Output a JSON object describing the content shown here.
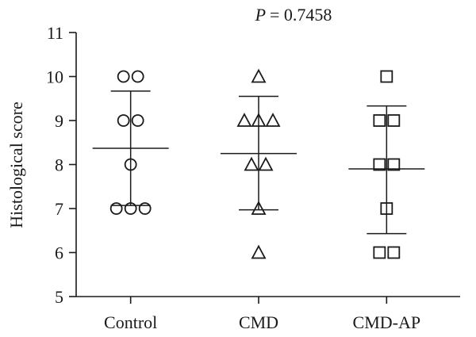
{
  "chart_data": {
    "type": "scatter",
    "title": "= 0.7458",
    "title_prefix": "P",
    "xlabel": "",
    "ylabel": "Histological score",
    "ylim": [
      5,
      11
    ],
    "yticks": [
      5,
      6,
      7,
      8,
      9,
      10,
      11
    ],
    "grid": false,
    "categories": [
      "Control",
      "CMD",
      "CMD-AP"
    ],
    "groups": [
      {
        "category": "Control",
        "marker": "circle",
        "values": [
          10,
          10,
          9,
          9,
          8,
          7,
          7,
          7
        ],
        "mean": 8.37,
        "sd_upper": 9.67,
        "sd_lower": 7.07
      },
      {
        "category": "CMD",
        "marker": "triangle",
        "values": [
          10,
          9,
          9,
          9,
          8,
          8,
          7,
          6
        ],
        "mean": 8.25,
        "sd_upper": 9.55,
        "sd_lower": 6.97
      },
      {
        "category": "CMD-AP",
        "marker": "square",
        "values": [
          10,
          9,
          9,
          8,
          8,
          7,
          6,
          6
        ],
        "mean": 7.9,
        "sd_upper": 9.33,
        "sd_lower": 6.43
      }
    ]
  }
}
